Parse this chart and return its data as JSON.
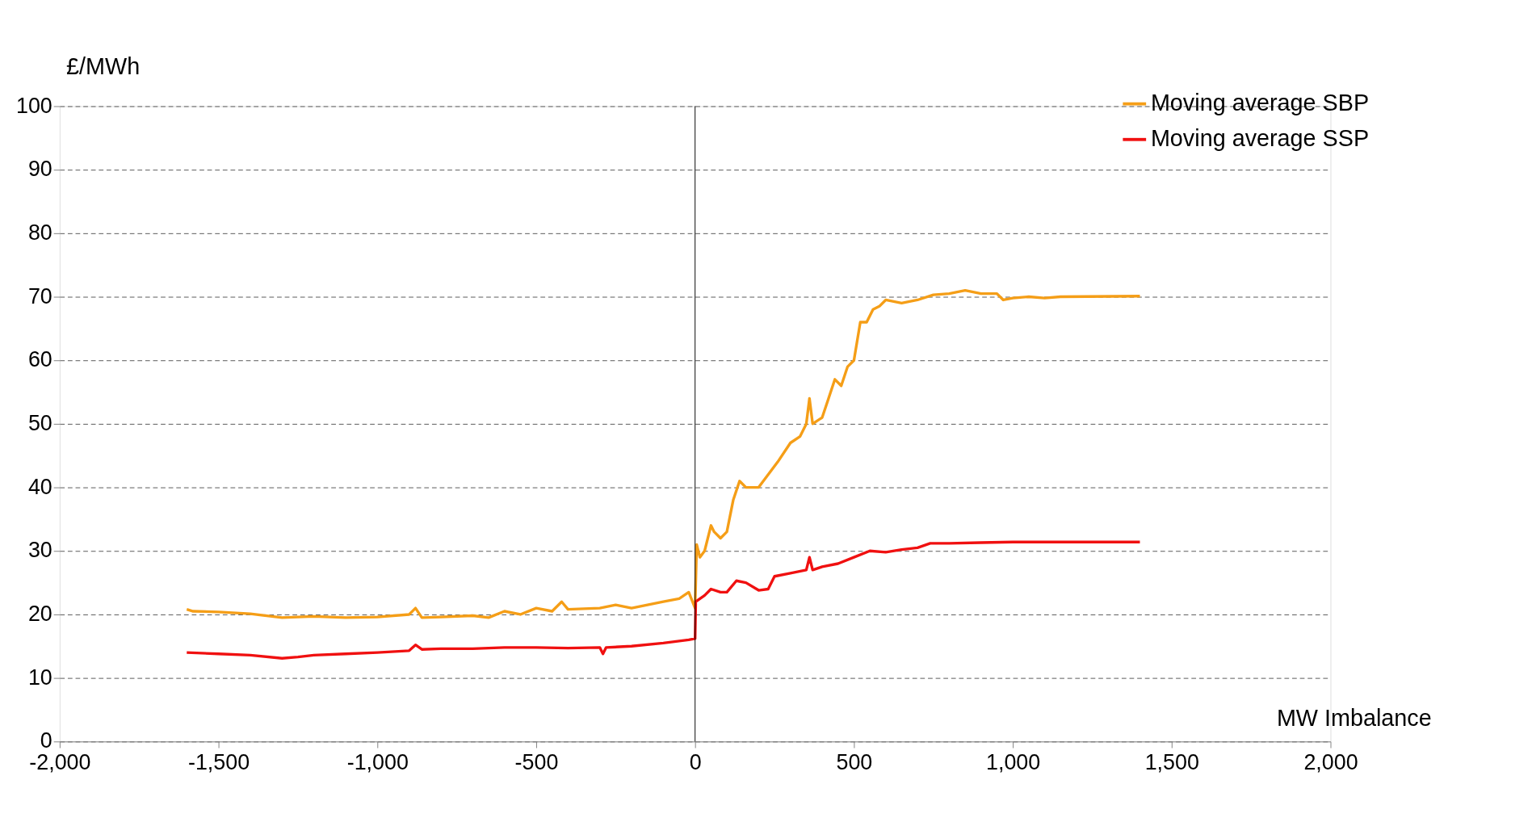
{
  "chart_data": {
    "type": "line",
    "ylabel": "£/MWh",
    "xlabel": "MW Imbalance",
    "xlim": [
      -2000,
      2000
    ],
    "xticks": [
      {
        "value": -2000,
        "label": "-2,000"
      },
      {
        "value": -1500,
        "label": "-1,500"
      },
      {
        "value": -1000,
        "label": "-1,000"
      },
      {
        "value": -500,
        "label": "-500"
      },
      0,
      500,
      {
        "value": 1000,
        "label": "1,000"
      },
      {
        "value": 1500,
        "label": "1,500"
      },
      {
        "value": 2000,
        "label": "2,000"
      }
    ],
    "ylim": [
      0,
      100
    ],
    "yticks": [
      0,
      10,
      20,
      30,
      40,
      50,
      60,
      70,
      80,
      90,
      100
    ],
    "grid": "y",
    "legend": "top right",
    "line_style": "solid",
    "marker": "none",
    "ref_lines": [
      {
        "axis": "x",
        "value": 0,
        "color": "#000000"
      }
    ],
    "series": [
      {
        "name": "Moving average SBP",
        "color": "#f59e17",
        "x": [
          -1600,
          -1580,
          -1500,
          -1400,
          -1300,
          -1200,
          -1100,
          -1000,
          -900,
          -880,
          -860,
          -800,
          -700,
          -650,
          -600,
          -550,
          -500,
          -450,
          -420,
          -400,
          -300,
          -250,
          -200,
          -100,
          -50,
          -20,
          0,
          5,
          15,
          30,
          50,
          60,
          80,
          100,
          120,
          140,
          160,
          200,
          230,
          260,
          300,
          330,
          350,
          360,
          370,
          400,
          420,
          440,
          460,
          480,
          500,
          520,
          540,
          560,
          580,
          600,
          650,
          700,
          750,
          800,
          850,
          900,
          950,
          970,
          1000,
          1050,
          1100,
          1150,
          1400
        ],
        "values": [
          20.8,
          20.5,
          20.4,
          20.1,
          19.5,
          19.7,
          19.5,
          19.6,
          20,
          21,
          19.5,
          19.6,
          19.8,
          19.5,
          20.5,
          20,
          21,
          20.5,
          22,
          20.8,
          21,
          21.5,
          21,
          22,
          22.5,
          23.5,
          21,
          31,
          29,
          30,
          34,
          33,
          32,
          33,
          38,
          41,
          40,
          40,
          42,
          44,
          47,
          48,
          50,
          54,
          50,
          51,
          54,
          57,
          56,
          59,
          60,
          66,
          66,
          68,
          68.5,
          69.5,
          69,
          69.5,
          70.3,
          70.5,
          71,
          70.5,
          70.5,
          69.5,
          69.8,
          70,
          69.8,
          70,
          70.1
        ]
      },
      {
        "name": "Moving average SSP",
        "color": "#f01010",
        "x": [
          -1600,
          -1500,
          -1400,
          -1300,
          -1250,
          -1200,
          -1100,
          -1000,
          -900,
          -880,
          -860,
          -800,
          -700,
          -600,
          -500,
          -400,
          -300,
          -290,
          -280,
          -200,
          -100,
          -20,
          0,
          2,
          30,
          50,
          80,
          100,
          130,
          160,
          200,
          230,
          250,
          300,
          350,
          360,
          370,
          400,
          450,
          500,
          550,
          600,
          650,
          700,
          740,
          800,
          900,
          1000,
          1200,
          1400
        ],
        "values": [
          14,
          13.8,
          13.6,
          13.1,
          13.3,
          13.6,
          13.8,
          14,
          14.3,
          15.2,
          14.5,
          14.6,
          14.6,
          14.8,
          14.8,
          14.7,
          14.8,
          13.8,
          14.8,
          15,
          15.5,
          16,
          16.2,
          22,
          23,
          24,
          23.5,
          23.5,
          25.3,
          25,
          23.8,
          24,
          26,
          26.5,
          27,
          29,
          27,
          27.5,
          28,
          29,
          30,
          29.8,
          30.2,
          30.5,
          31.2,
          31.2,
          31.3,
          31.4,
          31.4,
          31.4
        ]
      }
    ]
  }
}
